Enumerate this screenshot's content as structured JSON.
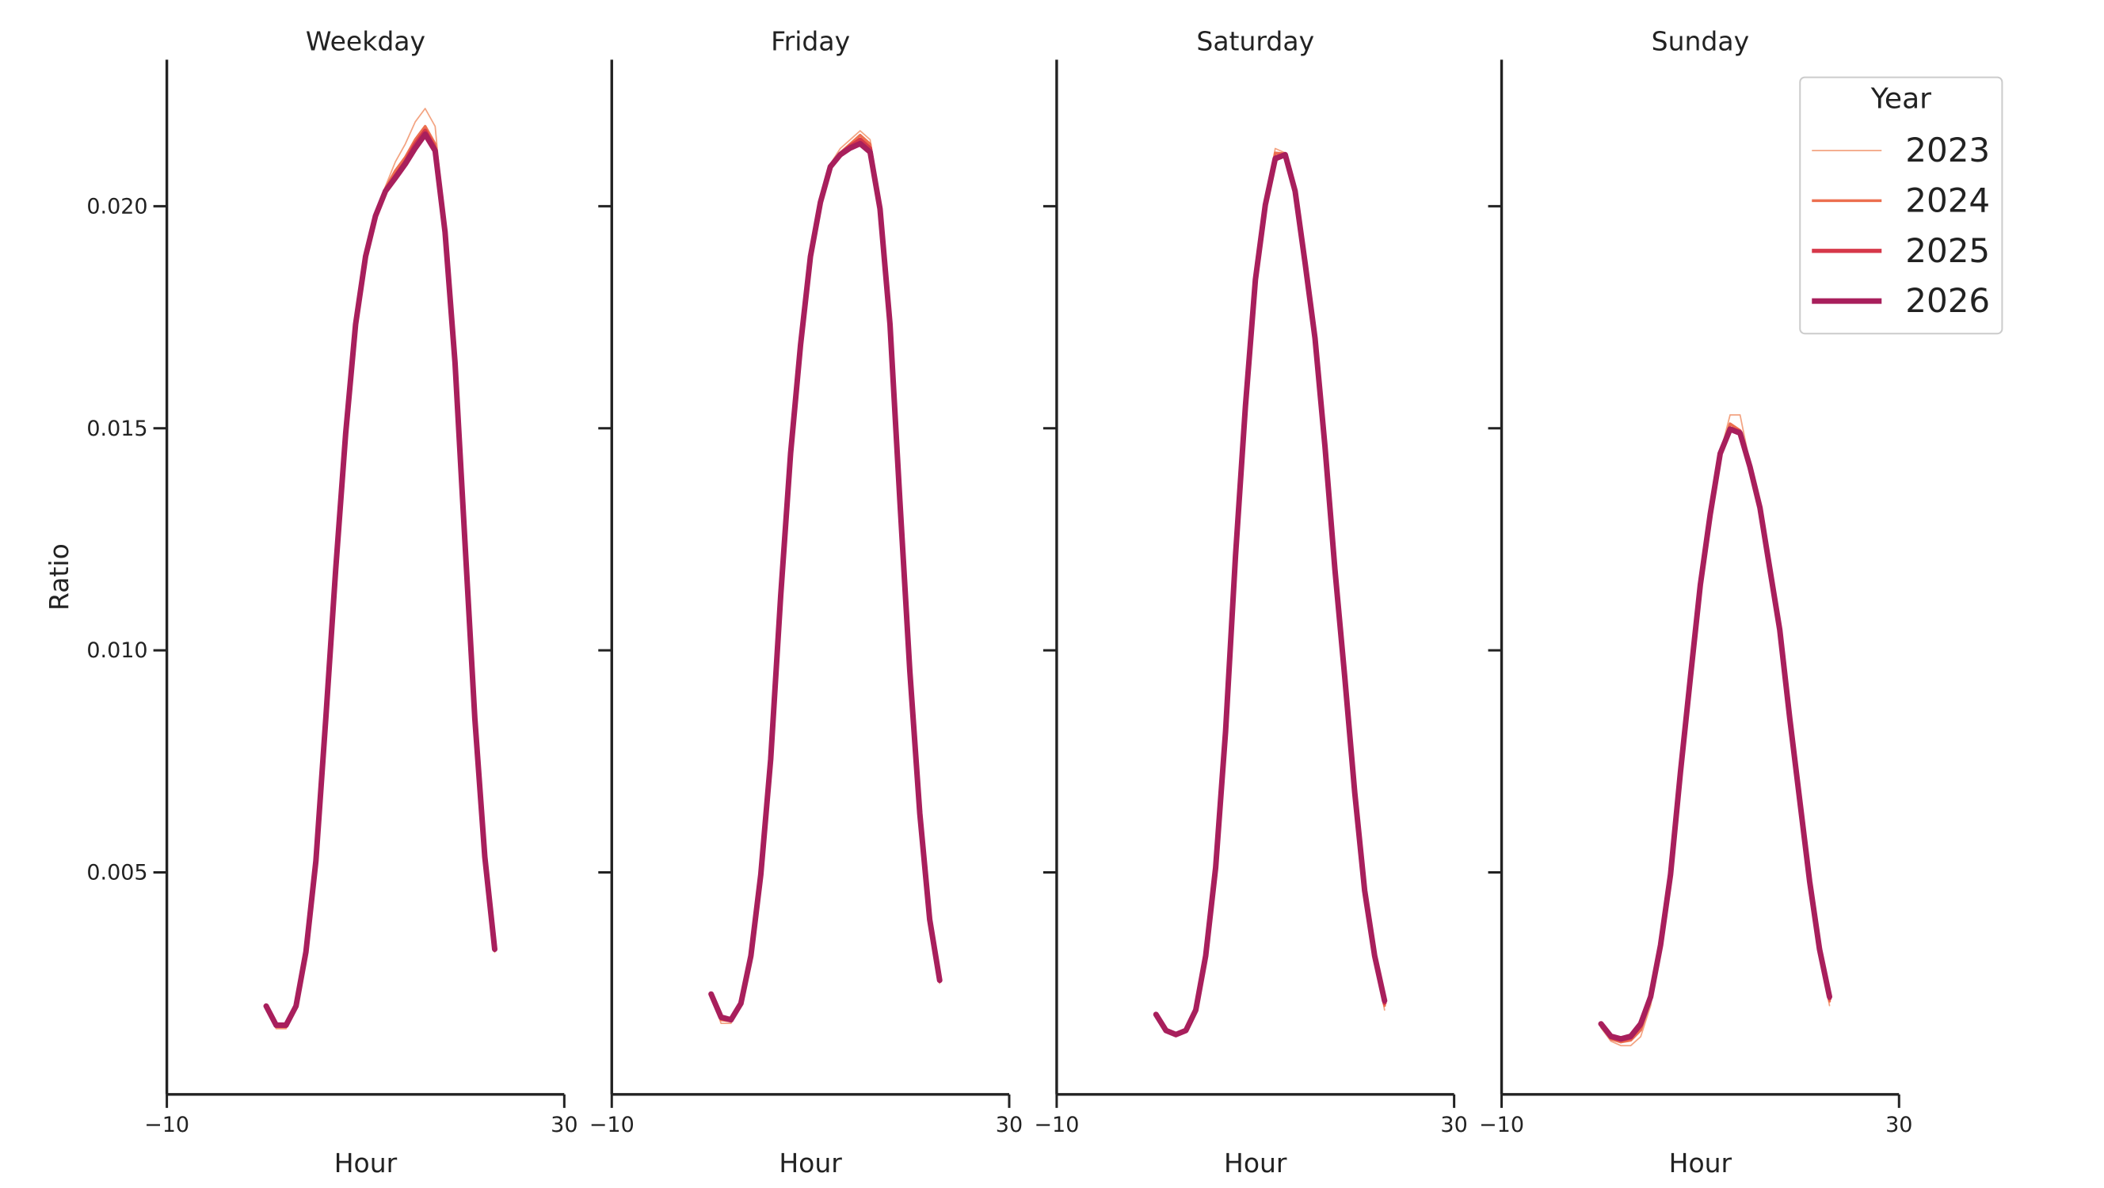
{
  "chart_data": [
    {
      "type": "line",
      "title": "Weekday",
      "xlabel": "Hour",
      "ylabel": "Ratio",
      "show_ytick_labels": true,
      "x": [
        0,
        1,
        2,
        3,
        4,
        5,
        6,
        7,
        8,
        9,
        10,
        11,
        12,
        13,
        14,
        15,
        16,
        17,
        18,
        19,
        20,
        21,
        22,
        23
      ],
      "xlim": [
        -10,
        30
      ],
      "xticks": [
        {
          "value": -10,
          "label": "−10"
        },
        30
      ],
      "ylim": [
        0,
        0.0233
      ],
      "yticks": [
        0.005,
        {
          "value": 0.01,
          "label": "0.010"
        },
        0.015,
        {
          "value": 0.02,
          "label": "0.020"
        }
      ],
      "series": [
        {
          "name": "2023",
          "color": "#f3a482",
          "values": [
            0.00199,
            0.00148,
            0.00148,
            0.00199,
            0.00321,
            0.00526,
            0.00847,
            0.01183,
            0.01489,
            0.01734,
            0.01887,
            0.01978,
            0.02045,
            0.021,
            0.0214,
            0.0219,
            0.0222,
            0.0218,
            0.01945,
            0.01648,
            0.01245,
            0.00847,
            0.00535,
            0.0032
          ]
        },
        {
          "name": "2024",
          "color": "#ec6f4f",
          "values": [
            0.00199,
            0.00152,
            0.00152,
            0.00199,
            0.00321,
            0.00526,
            0.00847,
            0.01183,
            0.01489,
            0.01734,
            0.01887,
            0.01978,
            0.0204,
            0.0208,
            0.0211,
            0.0215,
            0.0218,
            0.0214,
            0.01942,
            0.01648,
            0.01245,
            0.00847,
            0.00535,
            0.00325
          ]
        },
        {
          "name": "2025",
          "color": "#d6384a",
          "values": [
            0.00199,
            0.00155,
            0.00155,
            0.00199,
            0.00321,
            0.00526,
            0.00847,
            0.01183,
            0.01489,
            0.01734,
            0.01887,
            0.01978,
            0.02036,
            0.02068,
            0.021,
            0.0214,
            0.0217,
            0.0213,
            0.01942,
            0.01648,
            0.01245,
            0.00847,
            0.00535,
            0.00327
          ]
        },
        {
          "name": "2026",
          "color": "#a81f5c",
          "values": [
            0.00199,
            0.00156,
            0.00156,
            0.00199,
            0.00321,
            0.00526,
            0.00847,
            0.01183,
            0.01489,
            0.01734,
            0.01887,
            0.01978,
            0.02034,
            0.02064,
            0.02095,
            0.02131,
            0.02162,
            0.02125,
            0.01942,
            0.01648,
            0.01245,
            0.00847,
            0.00535,
            0.00327
          ]
        }
      ]
    },
    {
      "type": "line",
      "title": "Friday",
      "xlabel": "Hour",
      "show_ytick_labels": false,
      "x": [
        0,
        1,
        2,
        3,
        4,
        5,
        6,
        7,
        8,
        9,
        10,
        11,
        12,
        13,
        14,
        15,
        16,
        17,
        18,
        19,
        20,
        21,
        22,
        23
      ],
      "xlim": [
        -10,
        30
      ],
      "xticks": [
        {
          "value": -10,
          "label": "−10"
        },
        30
      ],
      "ylim": [
        0,
        0.0233
      ],
      "yticks": [
        0.005,
        {
          "value": 0.01,
          "label": "0.010"
        },
        0.015,
        {
          "value": 0.02,
          "label": "0.020"
        }
      ],
      "series": [
        {
          "name": "2023",
          "color": "#f3a482",
          "values": [
            0.00226,
            0.0016,
            0.0016,
            0.00205,
            0.00312,
            0.00495,
            0.00755,
            0.01122,
            0.01443,
            0.01688,
            0.01887,
            0.02009,
            0.02095,
            0.0213,
            0.0215,
            0.0217,
            0.0215,
            0.01994,
            0.01734,
            0.01336,
            0.00954,
            0.00633,
            0.00394,
            0.0025
          ]
        },
        {
          "name": "2024",
          "color": "#ec6f4f",
          "values": [
            0.00226,
            0.00168,
            0.00165,
            0.00205,
            0.00312,
            0.00495,
            0.00755,
            0.01122,
            0.01443,
            0.01688,
            0.01887,
            0.02009,
            0.02092,
            0.0212,
            0.0214,
            0.0216,
            0.0214,
            0.01994,
            0.01734,
            0.01336,
            0.00954,
            0.00633,
            0.00394,
            0.00255
          ]
        },
        {
          "name": "2025",
          "color": "#d6384a",
          "values": [
            0.00226,
            0.00172,
            0.00167,
            0.00205,
            0.00312,
            0.00495,
            0.00755,
            0.01122,
            0.01443,
            0.01688,
            0.01887,
            0.02009,
            0.0209,
            0.02118,
            0.02135,
            0.0215,
            0.0213,
            0.01994,
            0.01734,
            0.01336,
            0.00954,
            0.00633,
            0.00394,
            0.00257
          ]
        },
        {
          "name": "2026",
          "color": "#a81f5c",
          "values": [
            0.00226,
            0.00174,
            0.00168,
            0.00205,
            0.00312,
            0.00495,
            0.00755,
            0.01122,
            0.01443,
            0.01688,
            0.01887,
            0.02009,
            0.02089,
            0.02116,
            0.02131,
            0.02141,
            0.02122,
            0.01994,
            0.01734,
            0.01336,
            0.00954,
            0.00633,
            0.00394,
            0.00257
          ]
        }
      ]
    },
    {
      "type": "line",
      "title": "Saturday",
      "xlabel": "Hour",
      "show_ytick_labels": false,
      "x": [
        0,
        1,
        2,
        3,
        4,
        5,
        6,
        7,
        8,
        9,
        10,
        11,
        12,
        13,
        14,
        15,
        16,
        17,
        18,
        19,
        20,
        21,
        22,
        23
      ],
      "xlim": [
        -10,
        30
      ],
      "xticks": [
        {
          "value": -10,
          "label": "−10"
        },
        30
      ],
      "ylim": [
        0,
        0.0233
      ],
      "yticks": [
        0.005,
        {
          "value": 0.01,
          "label": "0.010"
        },
        0.015,
        {
          "value": 0.02,
          "label": "0.020"
        }
      ],
      "series": [
        {
          "name": "2023",
          "color": "#f3a482",
          "values": [
            0.0018,
            0.0014,
            0.0013,
            0.0014,
            0.0019,
            0.00312,
            0.00511,
            0.00817,
            0.01214,
            0.0155,
            0.01835,
            0.02003,
            0.0213,
            0.0212,
            0.02034,
            0.01872,
            0.01703,
            0.01459,
            0.01183,
            0.00939,
            0.00679,
            0.00459,
            0.00312,
            0.0019
          ]
        },
        {
          "name": "2024",
          "color": "#ec6f4f",
          "values": [
            0.0018,
            0.00142,
            0.00133,
            0.00142,
            0.0019,
            0.00312,
            0.00511,
            0.00817,
            0.01214,
            0.0155,
            0.01835,
            0.02003,
            0.0212,
            0.02118,
            0.02034,
            0.01872,
            0.01703,
            0.01459,
            0.01183,
            0.00939,
            0.00679,
            0.00459,
            0.00312,
            0.002
          ]
        },
        {
          "name": "2025",
          "color": "#d6384a",
          "values": [
            0.0018,
            0.00143,
            0.00134,
            0.00143,
            0.0019,
            0.00312,
            0.00511,
            0.00817,
            0.01214,
            0.0155,
            0.01835,
            0.02003,
            0.0211,
            0.02117,
            0.02034,
            0.01872,
            0.01703,
            0.01459,
            0.01183,
            0.00939,
            0.00679,
            0.00459,
            0.00312,
            0.00206
          ]
        },
        {
          "name": "2026",
          "color": "#a81f5c",
          "values": [
            0.0018,
            0.00144,
            0.00135,
            0.00144,
            0.0019,
            0.00312,
            0.00511,
            0.00817,
            0.01214,
            0.0155,
            0.01835,
            0.02003,
            0.02107,
            0.02116,
            0.02034,
            0.01872,
            0.01703,
            0.01459,
            0.01183,
            0.00939,
            0.00679,
            0.00459,
            0.00312,
            0.00211
          ]
        }
      ]
    },
    {
      "type": "line",
      "title": "Sunday",
      "xlabel": "Hour",
      "show_ytick_labels": false,
      "legend_title": "Year",
      "legend": "upper right",
      "x": [
        0,
        1,
        2,
        3,
        4,
        5,
        6,
        7,
        8,
        9,
        10,
        11,
        12,
        13,
        14,
        15,
        16,
        17,
        18,
        19,
        20,
        21,
        22,
        23
      ],
      "xlim": [
        -10,
        30
      ],
      "xticks": [
        {
          "value": -10,
          "label": "−10"
        },
        30
      ],
      "ylim": [
        0,
        0.0233
      ],
      "yticks": [
        0.005,
        {
          "value": 0.01,
          "label": "0.010"
        },
        0.015,
        {
          "value": 0.02,
          "label": "0.020"
        }
      ],
      "series": [
        {
          "name": "2023",
          "color": "#f3a482",
          "values": [
            0.0015,
            0.0012,
            0.0011,
            0.0011,
            0.0013,
            0.002,
            0.0033,
            0.00495,
            0.00725,
            0.00939,
            0.01147,
            0.01306,
            0.01443,
            0.0153,
            0.0153,
            0.0142,
            0.01321,
            0.01183,
            0.01046,
            0.00847,
            0.00664,
            0.0048,
            0.0032,
            0.002
          ]
        },
        {
          "name": "2024",
          "color": "#ec6f4f",
          "values": [
            0.00155,
            0.00125,
            0.00118,
            0.00122,
            0.00145,
            0.00212,
            0.00334,
            0.00495,
            0.00725,
            0.00939,
            0.01147,
            0.01306,
            0.01443,
            0.0151,
            0.01495,
            0.01415,
            0.01321,
            0.01183,
            0.01046,
            0.00847,
            0.00664,
            0.0048,
            0.00325,
            0.0021
          ]
        },
        {
          "name": "2025",
          "color": "#d6384a",
          "values": [
            0.00158,
            0.00129,
            0.00123,
            0.00128,
            0.00155,
            0.00218,
            0.00336,
            0.00495,
            0.00725,
            0.00939,
            0.01147,
            0.01306,
            0.01443,
            0.015,
            0.01492,
            0.01413,
            0.01321,
            0.01183,
            0.01046,
            0.00847,
            0.00664,
            0.0048,
            0.00327,
            0.00216
          ]
        },
        {
          "name": "2026",
          "color": "#a81f5c",
          "values": [
            0.00159,
            0.00131,
            0.00125,
            0.00131,
            0.00159,
            0.0022,
            0.00336,
            0.00495,
            0.00725,
            0.00939,
            0.01147,
            0.01306,
            0.01443,
            0.01498,
            0.01489,
            0.01413,
            0.01321,
            0.01183,
            0.01046,
            0.00847,
            0.00664,
            0.0048,
            0.00327,
            0.0022
          ]
        }
      ]
    }
  ]
}
